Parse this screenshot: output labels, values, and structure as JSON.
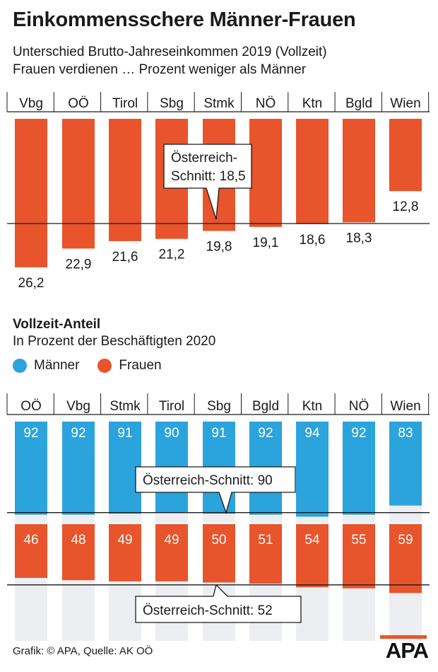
{
  "title": "Einkommensschere Männer-Frauen",
  "subtitle_line1": "Unterschied Brutto-Jahreseinkommen 2019 (Vollzeit)",
  "subtitle_line2": "Frauen verdienen … Prozent weniger als Männer",
  "section2_title": "Vollzeit-Anteil",
  "section2_subtitle": "In Prozent der Beschäftigten 2020",
  "legend": {
    "men": "Männer",
    "women": "Frauen"
  },
  "colors": {
    "men": "#2ba3dc",
    "women": "#e8542b",
    "background_bar": "#eceef1",
    "line": "#1a1a1a"
  },
  "footer": "Grafik: © APA, Quelle: AK OÖ",
  "logo": "APA",
  "chart_data": [
    {
      "type": "bar",
      "title": "Einkommensschere Männer-Frauen",
      "categories": [
        "Vbg",
        "OÖ",
        "Tirol",
        "Sbg",
        "Stmk",
        "NÖ",
        "Ktn",
        "Bgld",
        "Wien"
      ],
      "values": [
        26.2,
        22.9,
        21.6,
        21.2,
        19.8,
        19.1,
        18.6,
        18.3,
        12.8
      ],
      "value_labels": [
        "26,2",
        "22,9",
        "21,6",
        "21,2",
        "19,8",
        "19,1",
        "18,6",
        "18,3",
        "12,8"
      ],
      "reference": {
        "label": "Österreich-Schnitt: 18,5",
        "label_line1": "Österreich-",
        "label_line2": "Schnitt: 18,5",
        "value": 18.5
      },
      "color": "#e8542b"
    },
    {
      "type": "bar",
      "title": "Vollzeit-Anteil",
      "categories": [
        "OÖ",
        "Vbg",
        "Stmk",
        "Tirol",
        "Sbg",
        "Bgld",
        "Ktn",
        "NÖ",
        "Wien"
      ],
      "series": [
        {
          "name": "Männer",
          "values": [
            92,
            92,
            91,
            90,
            91,
            92,
            94,
            92,
            83
          ],
          "color": "#2ba3dc",
          "reference": {
            "label": "Österreich-Schnitt: 90",
            "value": 90
          }
        },
        {
          "name": "Frauen",
          "values": [
            46,
            48,
            49,
            49,
            50,
            51,
            54,
            55,
            59
          ],
          "color": "#e8542b",
          "reference": {
            "label": "Österreich-Schnitt: 52",
            "value": 52
          }
        }
      ]
    }
  ]
}
